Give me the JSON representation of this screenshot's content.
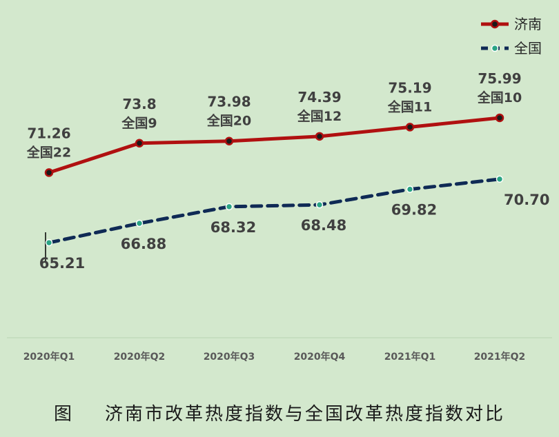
{
  "caption": "图    济南市改革热度指数与全国改革热度指数对比",
  "chart_data": {
    "type": "line",
    "categories": [
      "2020年Q1",
      "2020年Q2",
      "2020年Q3",
      "2020年Q4",
      "2021年Q1",
      "2021年Q2"
    ],
    "series": [
      {
        "name": "济南",
        "color": "#b01010",
        "style": "solid",
        "values": [
          71.26,
          73.8,
          73.98,
          74.39,
          75.19,
          75.99
        ],
        "value_labels": [
          "71.26",
          "73.8",
          "73.98",
          "74.39",
          "75.19",
          "75.99"
        ],
        "rank_labels": [
          "全国22",
          "全国9",
          "全国20",
          "全国12",
          "全国11",
          "全国10"
        ]
      },
      {
        "name": "全国",
        "color": "#0f2a55",
        "style": "dashed",
        "values": [
          65.21,
          66.88,
          68.32,
          68.48,
          69.82,
          70.7
        ],
        "value_labels": [
          "65.21",
          "66.88",
          "68.32",
          "68.48",
          "69.82",
          "70.70"
        ]
      }
    ],
    "ylim": [
      57,
      81
    ],
    "grid": false,
    "legend": "top-right"
  }
}
